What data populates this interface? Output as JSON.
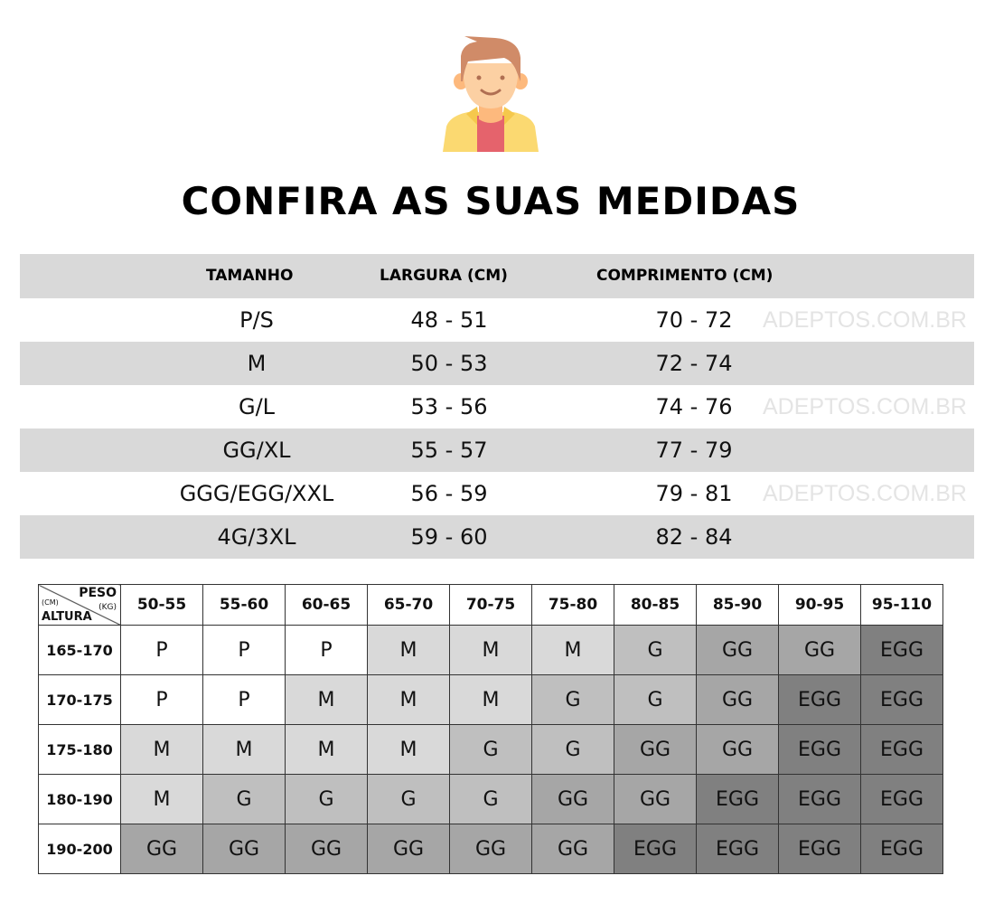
{
  "title": "CONFIRA AS SUAS MEDIDAS",
  "watermark": "ADEPTOS.COM.BR",
  "measures": {
    "headers": [
      "TAMANHO",
      "LARGURA (CM)",
      "COMPRIMENTO (CM)"
    ],
    "rows": [
      [
        "P/S",
        "48 - 51",
        "70 - 72"
      ],
      [
        "M",
        "50 - 53",
        "72 - 74"
      ],
      [
        "G/L",
        "53 - 56",
        "74 - 76"
      ],
      [
        "GG/XL",
        "55 - 57",
        "77 - 79"
      ],
      [
        "GGG/EGG/XXL",
        "56 - 59",
        "79 - 81"
      ],
      [
        "4G/3XL",
        "59 - 60",
        "82 - 84"
      ]
    ]
  },
  "grid": {
    "corner": {
      "peso": "PESO",
      "kg": "(KG)",
      "cm": "(CM)",
      "altura": "ALTURA"
    },
    "weights": [
      "50-55",
      "55-60",
      "60-65",
      "65-70",
      "70-75",
      "75-80",
      "80-85",
      "85-90",
      "90-95",
      "95-110"
    ],
    "heights": [
      "165-170",
      "170-175",
      "175-180",
      "180-190",
      "190-200"
    ],
    "cells": [
      [
        "P",
        "P",
        "P",
        "M",
        "M",
        "M",
        "G",
        "GG",
        "GG",
        "EGG"
      ],
      [
        "P",
        "P",
        "M",
        "M",
        "M",
        "G",
        "G",
        "GG",
        "EGG",
        "EGG"
      ],
      [
        "M",
        "M",
        "M",
        "M",
        "G",
        "G",
        "GG",
        "GG",
        "EGG",
        "EGG"
      ],
      [
        "M",
        "G",
        "G",
        "G",
        "G",
        "GG",
        "GG",
        "EGG",
        "EGG",
        "EGG"
      ],
      [
        "GG",
        "GG",
        "GG",
        "GG",
        "GG",
        "GG",
        "EGG",
        "EGG",
        "EGG",
        "EGG"
      ]
    ],
    "colors": {
      "P": "#ffffff",
      "M": "#d9d9d9",
      "G": "#bfbfbf",
      "GG": "#a6a6a6",
      "EGG": "#808080"
    }
  }
}
